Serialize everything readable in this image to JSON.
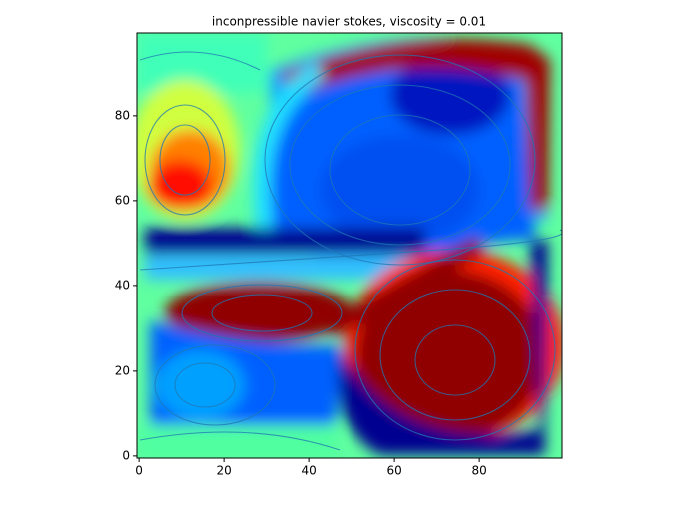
{
  "chart_data": {
    "type": "heatmap",
    "title": "inconpressible navier stokes, viscosity = 0.01",
    "xlim": [
      -0.5,
      99.5
    ],
    "ylim": [
      -0.5,
      99.5
    ],
    "xticks": [
      0,
      20,
      40,
      60,
      80
    ],
    "yticks": [
      0,
      20,
      40,
      60,
      80
    ]
  }
}
